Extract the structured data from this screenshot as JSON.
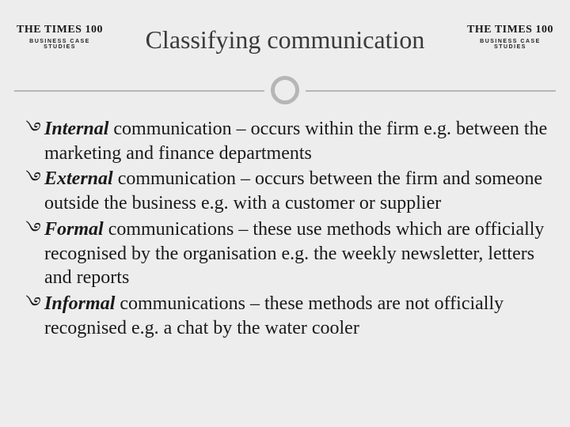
{
  "logo": {
    "title": "THE TIMES 100",
    "subtitle": "BUSINESS CASE STUDIES"
  },
  "title": "Classifying communication",
  "bullet_glyph": "࿓",
  "items": [
    {
      "term": "Internal",
      "rest": " communication – occurs within the firm e.g. between the marketing and finance departments"
    },
    {
      "term": "External",
      "rest": " communication – occurs between the firm and someone outside the business e.g. with a customer or supplier"
    },
    {
      "term": "Formal",
      "rest": " communications – these use methods which are officially recognised by the organisation e.g. the weekly newsletter, letters and reports"
    },
    {
      "term": "Informal",
      "rest": " communications – these methods are not officially recognised e.g. a chat by the water cooler"
    }
  ],
  "colors": {
    "background": "#ededed",
    "rule": "#b6b6b6",
    "text": "#1a1a1a",
    "title": "#3a3a3a"
  }
}
